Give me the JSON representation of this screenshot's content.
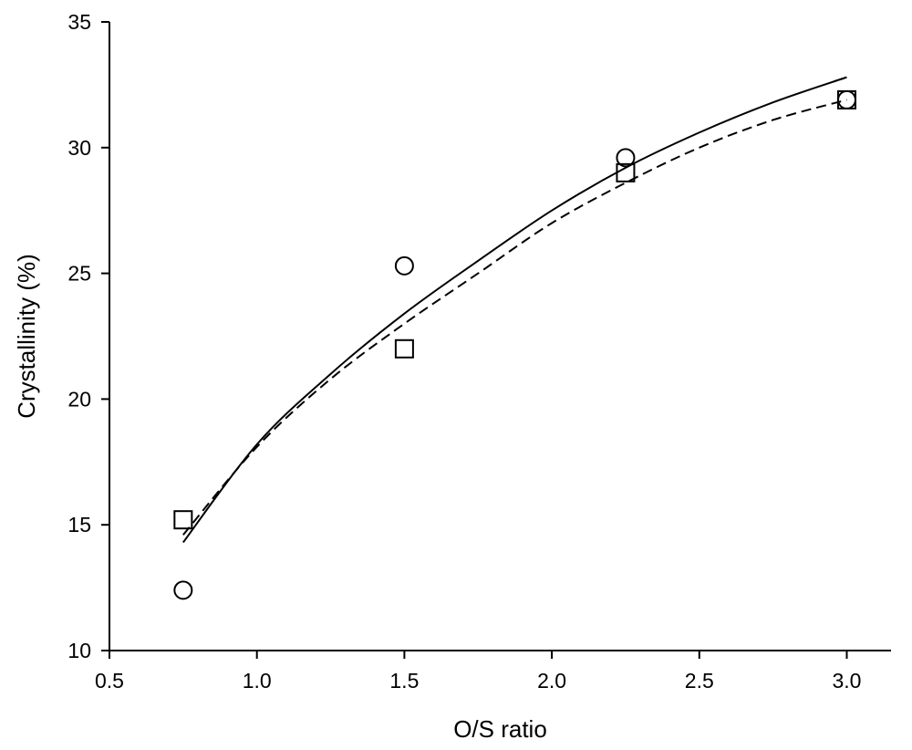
{
  "chart_data": {
    "type": "scatter",
    "title": "",
    "xlabel": "O/S ratio",
    "ylabel": "Crystallinity (%)",
    "xlim": [
      0.5,
      3.15
    ],
    "ylim": [
      10,
      35
    ],
    "x_ticks": [
      "0.5",
      "1.0",
      "1.5",
      "2.0",
      "2.5",
      "3.0"
    ],
    "y_ticks": [
      "10",
      "15",
      "20",
      "25",
      "30",
      "35"
    ],
    "grid": false,
    "legend": "none",
    "series": [
      {
        "marker": "circle",
        "x": [
          0.75,
          1.5,
          2.25,
          3.0
        ],
        "y": [
          12.4,
          25.3,
          29.6,
          31.9
        ]
      },
      {
        "marker": "square",
        "x": [
          0.75,
          1.5,
          2.25,
          3.0
        ],
        "y": [
          15.2,
          22.0,
          29.0,
          31.9
        ]
      }
    ],
    "fits": [
      {
        "line_style": "solid",
        "x": [
          0.75,
          1.0,
          1.25,
          1.5,
          1.75,
          2.0,
          2.25,
          2.5,
          2.75,
          3.0
        ],
        "y": [
          14.3,
          18.2,
          21.0,
          23.4,
          25.5,
          27.5,
          29.2,
          30.6,
          31.8,
          32.8
        ]
      },
      {
        "line_style": "dashed",
        "x": [
          0.75,
          1.0,
          1.25,
          1.5,
          1.75,
          2.0,
          2.25,
          2.5,
          2.75,
          3.0
        ],
        "y": [
          14.6,
          18.1,
          20.8,
          23.0,
          25.0,
          27.0,
          28.6,
          30.0,
          31.1,
          31.9
        ]
      }
    ],
    "colors": {
      "axis": "#000000",
      "marker": "#000000",
      "background": "#ffffff"
    }
  }
}
